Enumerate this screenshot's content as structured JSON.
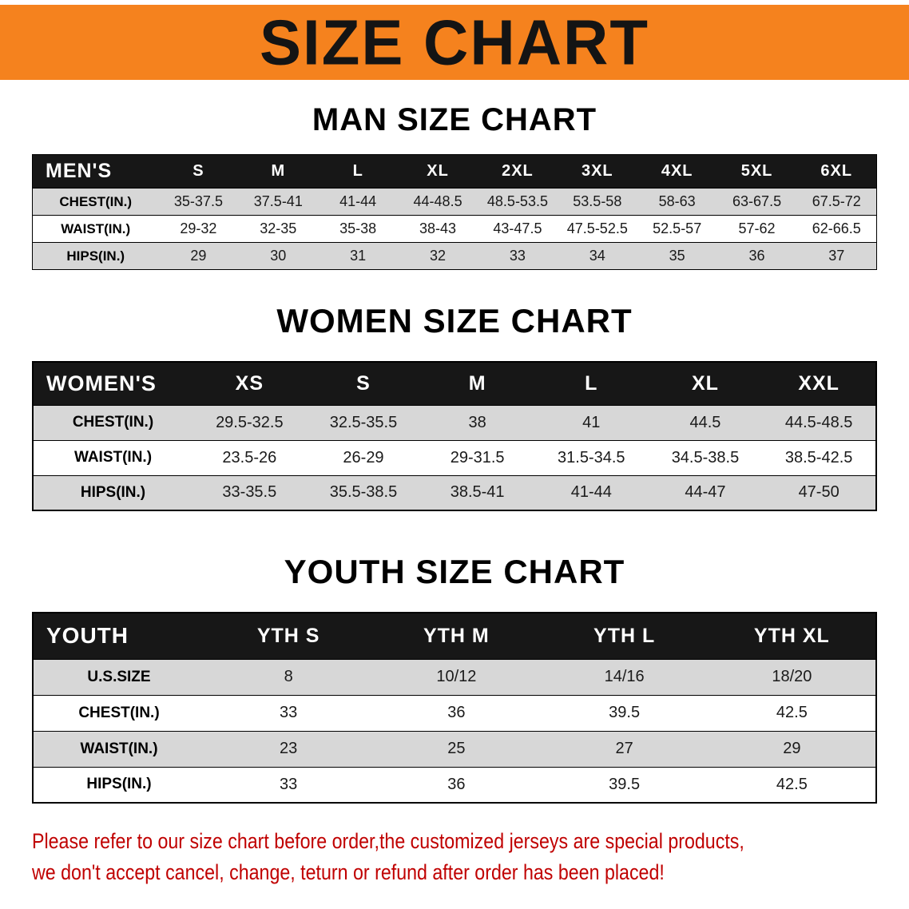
{
  "banner": {
    "title": "SIZE CHART"
  },
  "colors": {
    "banner": "#F5821E",
    "header-bg": "#171717",
    "stripe": "#D7D7D7",
    "notice": "#C00000"
  },
  "sections": [
    {
      "heading": "MAN SIZE CHART",
      "table": {
        "header": [
          "MEN'S",
          "S",
          "M",
          "L",
          "XL",
          "2XL",
          "3XL",
          "4XL",
          "5XL",
          "6XL"
        ],
        "rows": [
          [
            "CHEST(IN.)",
            "35-37.5",
            "37.5-41",
            "41-44",
            "44-48.5",
            "48.5-53.5",
            "53.5-58",
            "58-63",
            "63-67.5",
            "67.5-72"
          ],
          [
            "WAIST(IN.)",
            "29-32",
            "32-35",
            "35-38",
            "38-43",
            "43-47.5",
            "47.5-52.5",
            "52.5-57",
            "57-62",
            "62-66.5"
          ],
          [
            "HIPS(IN.)",
            "29",
            "30",
            "31",
            "32",
            "33",
            "34",
            "35",
            "36",
            "37"
          ]
        ]
      }
    },
    {
      "heading": "WOMEN SIZE CHART",
      "table": {
        "header": [
          "WOMEN'S",
          "XS",
          "S",
          "M",
          "L",
          "XL",
          "XXL"
        ],
        "rows": [
          [
            "CHEST(IN.)",
            "29.5-32.5",
            "32.5-35.5",
            "38",
            "41",
            "44.5",
            "44.5-48.5"
          ],
          [
            "WAIST(IN.)",
            "23.5-26",
            "26-29",
            "29-31.5",
            "31.5-34.5",
            "34.5-38.5",
            "38.5-42.5"
          ],
          [
            "HIPS(IN.)",
            "33-35.5",
            "35.5-38.5",
            "38.5-41",
            "41-44",
            "44-47",
            "47-50"
          ]
        ]
      }
    },
    {
      "heading": "YOUTH SIZE CHART",
      "table": {
        "header": [
          "YOUTH",
          "YTH S",
          "YTH M",
          "YTH L",
          "YTH XL"
        ],
        "rows": [
          [
            "U.S.SIZE",
            "8",
            "10/12",
            "14/16",
            "18/20"
          ],
          [
            "CHEST(IN.)",
            "33",
            "36",
            "39.5",
            "42.5"
          ],
          [
            "WAIST(IN.)",
            "23",
            "25",
            "27",
            "29"
          ],
          [
            "HIPS(IN.)",
            "33",
            "36",
            "39.5",
            "42.5"
          ]
        ]
      }
    }
  ],
  "footer": {
    "line1": "Please refer to our size chart before order,the customized jerseys are special products,",
    "line2": "we don't accept cancel, change, teturn or refund after order has been placed!"
  }
}
